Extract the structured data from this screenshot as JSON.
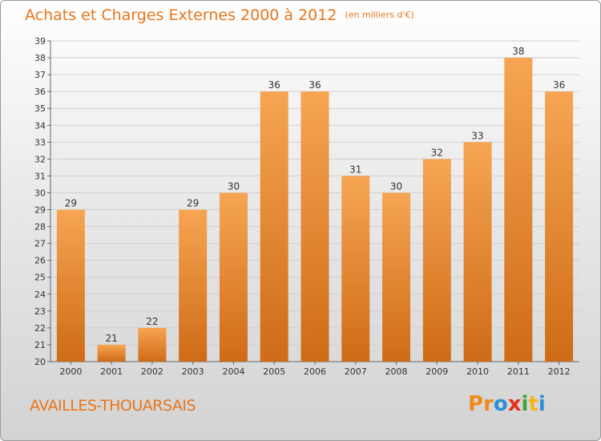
{
  "title": "Achats et Charges Externes 2000 à 2012",
  "unit": "(en milliers d'€)",
  "commune": "AVAILLES-THOUARSAIS",
  "logo": {
    "letters": [
      "P",
      "r",
      "o",
      "x",
      "i",
      "t",
      "i"
    ],
    "colors": [
      "#f08a1c",
      "#f08a1c",
      "#2c8fd6",
      "#e8311a",
      "#3aa637",
      "#f2b41a",
      "#2c8fd6"
    ]
  },
  "colors": {
    "bar_top": "#f6a552",
    "bar_bottom": "#cf6b16",
    "accent": "#e8751a"
  },
  "chart_data": {
    "type": "bar",
    "categories": [
      "2000",
      "2001",
      "2002",
      "2003",
      "2004",
      "2005",
      "2006",
      "2007",
      "2008",
      "2009",
      "2010",
      "2011",
      "2012"
    ],
    "values": [
      29,
      21,
      22,
      29,
      30,
      36,
      36,
      31,
      30,
      32,
      33,
      38,
      36
    ],
    "ylim": [
      20,
      39
    ],
    "yticks": [
      20,
      21,
      22,
      23,
      24,
      25,
      26,
      27,
      28,
      29,
      30,
      31,
      32,
      33,
      34,
      35,
      36,
      37,
      38,
      39
    ],
    "grid": true
  }
}
